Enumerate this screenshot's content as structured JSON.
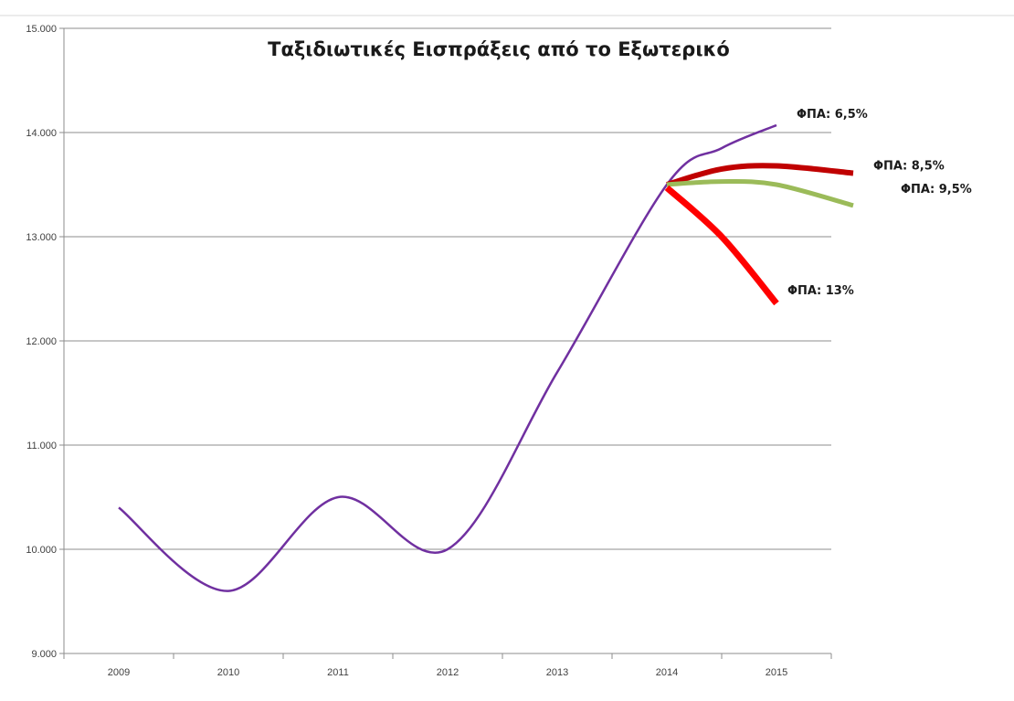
{
  "chart_data": {
    "type": "line",
    "title": "Ταξιδιωτικές Εισπράξεις από το Εξωτερικό",
    "xlabel": "",
    "ylabel": "",
    "x": [
      2009,
      2010,
      2011,
      2012,
      2013,
      2014,
      2015
    ],
    "x_tick_labels": [
      "2009",
      "2010",
      "2011",
      "2012",
      "2013",
      "2014",
      "2015"
    ],
    "ylim": [
      9000,
      15000
    ],
    "y_ticks": [
      9000,
      10000,
      11000,
      12000,
      13000,
      14000,
      15000
    ],
    "y_tick_labels": [
      "9.000",
      "10.000",
      "11.000",
      "12.000",
      "13.000",
      "14.000",
      "15.000"
    ],
    "grid": true,
    "legend": "none",
    "series": [
      {
        "name": "ΦΠΑ: 6,5%",
        "color": "#7030a0",
        "points": [
          [
            2009,
            10400
          ],
          [
            2010,
            9600
          ],
          [
            2011,
            10500
          ],
          [
            2012,
            10000
          ],
          [
            2013,
            11700
          ],
          [
            2014,
            13500
          ],
          [
            2014.5,
            13850
          ],
          [
            2015,
            14070
          ]
        ]
      },
      {
        "name": "ΦΠΑ: 8,5%",
        "color": "#c00000",
        "points": [
          [
            2014,
            13500
          ],
          [
            2014.5,
            13650
          ],
          [
            2015,
            13680
          ],
          [
            2015.7,
            13610
          ]
        ]
      },
      {
        "name": "ΦΠΑ: 9,5%",
        "color": "#9bbb59",
        "points": [
          [
            2014,
            13500
          ],
          [
            2014.5,
            13530
          ],
          [
            2015,
            13500
          ],
          [
            2015.7,
            13300
          ]
        ]
      },
      {
        "name": "ΦΠΑ: 13%",
        "color": "#ff0000",
        "points": [
          [
            2014,
            13470
          ],
          [
            2014.5,
            13000
          ],
          [
            2015,
            12360
          ]
        ]
      }
    ]
  }
}
